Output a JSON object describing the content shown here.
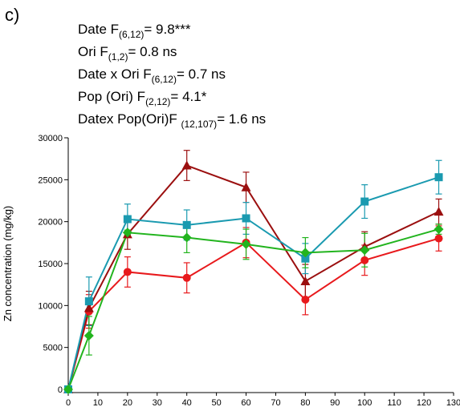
{
  "chart_data": {
    "type": "line",
    "panel_label": "c)",
    "annotations": [
      [
        "Date  F",
        "(6,12)",
        "= 9.8***"
      ],
      [
        "Ori F",
        "(1,2)",
        "= 0.8 ns"
      ],
      [
        "Date x Ori F",
        "(6,12)",
        "= 0.7 ns"
      ],
      [
        "Pop (Ori) F",
        "(2,12)",
        "= 4.1*"
      ],
      [
        "Datex Pop(Ori)F ",
        "(12,107)",
        "= 1.6 ns"
      ]
    ],
    "y_label": "Zn concentration (mg/kg)",
    "x": [
      0,
      7,
      20,
      40,
      60,
      80,
      100,
      125
    ],
    "xlim": [
      0,
      130
    ],
    "xticks": [
      0,
      10,
      20,
      30,
      40,
      50,
      60,
      70,
      80,
      90,
      100,
      110,
      120,
      130
    ],
    "ylim": [
      0,
      30000
    ],
    "yticks": [
      0,
      5000,
      10000,
      15000,
      20000,
      25000,
      30000
    ],
    "series": [
      {
        "color": "#e8191c",
        "marker": "circle",
        "values": [
          0,
          9300,
          14000,
          13300,
          17500,
          10700,
          15400,
          18000
        ],
        "errors": [
          0,
          2000,
          1800,
          1800,
          1800,
          1800,
          1800,
          1500
        ]
      },
      {
        "color": "#9b0f0f",
        "marker": "triangle",
        "values": [
          0,
          9700,
          18500,
          26700,
          24100,
          12900,
          17000,
          21200
        ],
        "errors": [
          0,
          2000,
          1800,
          1800,
          1800,
          2000,
          1800,
          1500
        ]
      },
      {
        "color": "#1a9ab0",
        "marker": "square",
        "values": [
          0,
          10500,
          20300,
          19600,
          20400,
          15600,
          22400,
          25300
        ],
        "errors": [
          0,
          2900,
          1800,
          1800,
          1900,
          1800,
          2000,
          2000
        ]
      },
      {
        "color": "#22b41e",
        "marker": "diamond",
        "values": [
          0,
          6400,
          18700,
          18100,
          17300,
          16300,
          16600,
          19100
        ],
        "errors": [
          0,
          2300,
          300,
          1800,
          1800,
          1800,
          2000,
          600
        ]
      }
    ]
  }
}
